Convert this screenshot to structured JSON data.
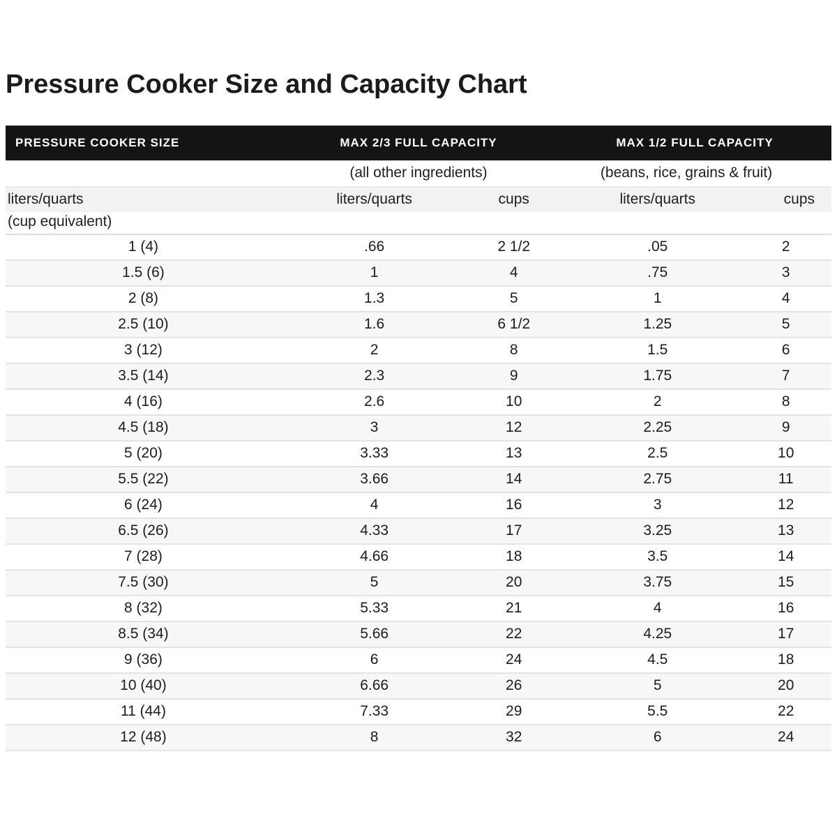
{
  "page": {
    "title": "Pressure Cooker Size and Capacity Chart"
  },
  "table": {
    "header": {
      "size_col": "PRESSURE COOKER SIZE",
      "group_two_thirds": "MAX 2/3 FULL CAPACITY",
      "group_one_half": "MAX 1/2 FULL CAPACITY"
    },
    "subheader": {
      "group_two_thirds": "(all other ingredients)",
      "group_one_half": "(beans, rice, grains & fruit)"
    },
    "units": {
      "size_line1": "liters/quarts",
      "size_line2": "(cup equivalent)",
      "col2": "liters/quarts",
      "col3": "cups",
      "col4": "liters/quarts",
      "col5": "cups"
    }
  },
  "chart_data": {
    "type": "table",
    "title": "Pressure Cooker Size and Capacity Chart",
    "columns": [
      "Pressure cooker size liters/quarts (cup equivalent)",
      "Max 2/3 full capacity (all other ingredients) liters/quarts",
      "Max 2/3 full capacity (all other ingredients) cups",
      "Max 1/2 full capacity (beans, rice, grains & fruit) liters/quarts",
      "Max 1/2 full capacity (beans, rice, grains & fruit) cups"
    ],
    "rows": [
      [
        "1 (4)",
        ".66",
        "2 1/2",
        ".05",
        "2"
      ],
      [
        "1.5 (6)",
        "1",
        "4",
        ".75",
        "3"
      ],
      [
        "2 (8)",
        "1.3",
        "5",
        "1",
        "4"
      ],
      [
        "2.5 (10)",
        "1.6",
        "6 1/2",
        "1.25",
        "5"
      ],
      [
        "3 (12)",
        "2",
        "8",
        "1.5",
        "6"
      ],
      [
        "3.5 (14)",
        "2.3",
        "9",
        "1.75",
        "7"
      ],
      [
        "4 (16)",
        "2.6",
        "10",
        "2",
        "8"
      ],
      [
        "4.5 (18)",
        "3",
        "12",
        "2.25",
        "9"
      ],
      [
        "5 (20)",
        "3.33",
        "13",
        "2.5",
        "10"
      ],
      [
        "5.5 (22)",
        "3.66",
        "14",
        "2.75",
        "11"
      ],
      [
        "6 (24)",
        "4",
        "16",
        "3",
        "12"
      ],
      [
        "6.5 (26)",
        "4.33",
        "17",
        "3.25",
        "13"
      ],
      [
        "7 (28)",
        "4.66",
        "18",
        "3.5",
        "14"
      ],
      [
        "7.5 (30)",
        "5",
        "20",
        "3.75",
        "15"
      ],
      [
        "8 (32)",
        "5.33",
        "21",
        "4",
        "16"
      ],
      [
        "8.5 (34)",
        "5.66",
        "22",
        "4.25",
        "17"
      ],
      [
        "9 (36)",
        "6",
        "24",
        "4.5",
        "18"
      ],
      [
        "10 (40)",
        "6.66",
        "26",
        "5",
        "20"
      ],
      [
        "11 (44)",
        "7.33",
        "29",
        "5.5",
        "22"
      ],
      [
        "12 (48)",
        "8",
        "32",
        "6",
        "24"
      ]
    ]
  },
  "colors": {
    "header_bg": "#141414",
    "header_text": "#ffffff",
    "body_text": "#1c1c1c",
    "row_stripe": "#f7f7f7",
    "units_row_bg": "#f2f2f2",
    "row_border": "#e3e3e3"
  }
}
